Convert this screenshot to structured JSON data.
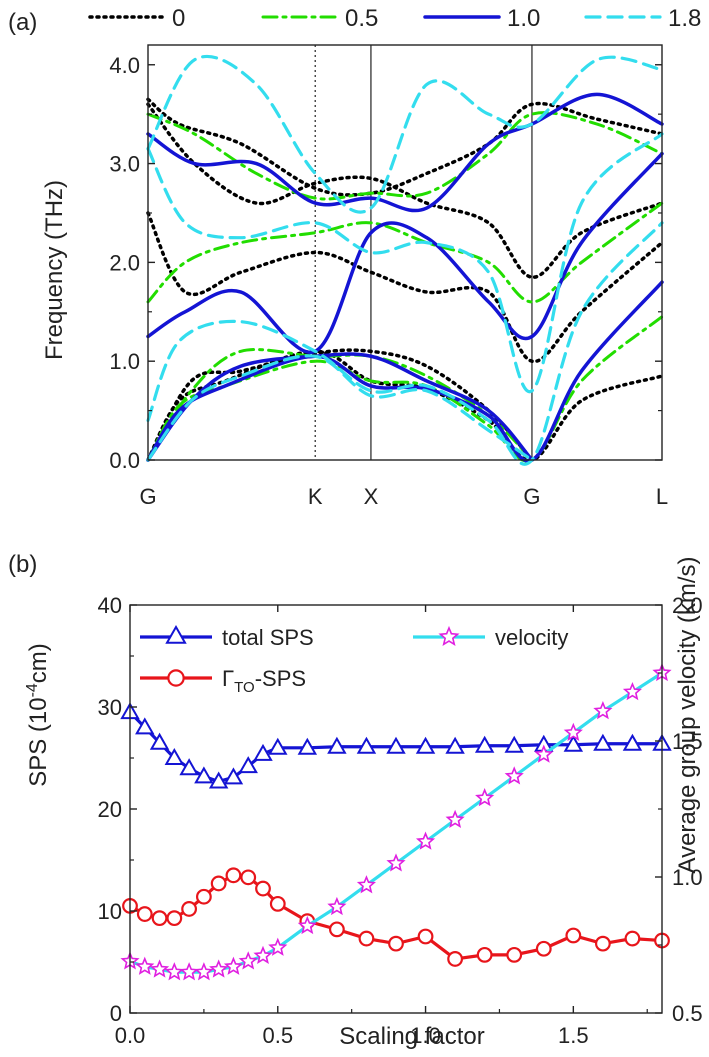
{
  "chart_data": [
    {
      "type": "line",
      "panel_label": "(a)",
      "ylabel": "Frequency (THz)",
      "ylim": [
        0,
        4.2
      ],
      "yticks": [
        "0.0",
        "1.0",
        "2.0",
        "3.0",
        "4.0"
      ],
      "xticks": [
        "G",
        "K",
        "X",
        "G",
        "L"
      ],
      "high_symmetry_positions": [
        0,
        0.54,
        0.72,
        1.24,
        1.66
      ],
      "legend": [
        {
          "name": "0",
          "color": "#000000",
          "dash": "dot"
        },
        {
          "name": "0.5",
          "color": "#22dd00",
          "dash": "dashdot"
        },
        {
          "name": "1.0",
          "color": "#1414d4",
          "dash": "solid"
        },
        {
          "name": "1.8",
          "color": "#33ddee",
          "dash": "dash"
        }
      ],
      "series": [
        {
          "name": "0",
          "bands": [
            [
              [
                0,
                0
              ],
              [
                0.14,
                0.8
              ],
              [
                0.3,
                0.9
              ],
              [
                0.54,
                1.08
              ],
              [
                0.72,
                1.1
              ],
              [
                0.9,
                0.95
              ],
              [
                1.1,
                0.5
              ],
              [
                1.24,
                0
              ]
            ],
            [
              [
                0,
                0
              ],
              [
                0.1,
                0.6
              ],
              [
                0.25,
                0.8
              ],
              [
                0.54,
                1.1
              ],
              [
                0.72,
                0.8
              ],
              [
                0.9,
                0.72
              ],
              [
                1.1,
                0.4
              ],
              [
                1.24,
                0
              ],
              [
                1.4,
                0.6
              ],
              [
                1.66,
                0.85
              ]
            ],
            [
              [
                0,
                2.5
              ],
              [
                0.12,
                1.7
              ],
              [
                0.3,
                1.9
              ],
              [
                0.54,
                2.1
              ],
              [
                0.72,
                1.9
              ],
              [
                0.9,
                1.7
              ],
              [
                1.1,
                1.7
              ],
              [
                1.24,
                1.0
              ],
              [
                1.4,
                1.5
              ],
              [
                1.66,
                2.2
              ]
            ],
            [
              [
                0,
                3.6
              ],
              [
                0.15,
                3.0
              ],
              [
                0.35,
                2.6
              ],
              [
                0.54,
                2.8
              ],
              [
                0.72,
                2.85
              ],
              [
                0.9,
                2.6
              ],
              [
                1.1,
                2.4
              ],
              [
                1.24,
                1.85
              ],
              [
                1.4,
                2.3
              ],
              [
                1.66,
                2.6
              ]
            ],
            [
              [
                0,
                3.65
              ],
              [
                0.1,
                3.4
              ],
              [
                0.3,
                3.2
              ],
              [
                0.54,
                2.75
              ],
              [
                0.72,
                2.7
              ],
              [
                0.9,
                2.9
              ],
              [
                1.1,
                3.2
              ],
              [
                1.24,
                3.6
              ],
              [
                1.45,
                3.45
              ],
              [
                1.66,
                3.3
              ]
            ]
          ]
        },
        {
          "name": "0.5",
          "bands": [
            [
              [
                0,
                0
              ],
              [
                0.14,
                0.7
              ],
              [
                0.3,
                1.1
              ],
              [
                0.54,
                1.05
              ],
              [
                0.72,
                1.05
              ],
              [
                0.9,
                0.85
              ],
              [
                1.1,
                0.45
              ],
              [
                1.24,
                0
              ]
            ],
            [
              [
                0,
                0
              ],
              [
                0.1,
                0.55
              ],
              [
                0.25,
                0.75
              ],
              [
                0.54,
                1.0
              ],
              [
                0.72,
                0.8
              ],
              [
                0.9,
                0.75
              ],
              [
                1.1,
                0.35
              ],
              [
                1.24,
                0
              ],
              [
                1.4,
                0.8
              ],
              [
                1.66,
                1.45
              ]
            ],
            [
              [
                0,
                1.6
              ],
              [
                0.12,
                2.0
              ],
              [
                0.3,
                2.2
              ],
              [
                0.54,
                2.3
              ],
              [
                0.72,
                2.4
              ],
              [
                0.9,
                2.2
              ],
              [
                1.1,
                2.0
              ],
              [
                1.24,
                1.6
              ],
              [
                1.4,
                2.0
              ],
              [
                1.66,
                2.6
              ]
            ],
            [
              [
                0,
                3.5
              ],
              [
                0.15,
                3.3
              ],
              [
                0.35,
                2.9
              ],
              [
                0.54,
                2.65
              ],
              [
                0.72,
                2.7
              ],
              [
                0.9,
                2.7
              ],
              [
                1.1,
                3.1
              ],
              [
                1.24,
                3.5
              ],
              [
                1.45,
                3.4
              ],
              [
                1.66,
                3.1
              ]
            ]
          ]
        },
        {
          "name": "1.0",
          "bands": [
            [
              [
                0,
                0
              ],
              [
                0.14,
                0.6
              ],
              [
                0.3,
                0.95
              ],
              [
                0.54,
                1.05
              ],
              [
                0.72,
                1.05
              ],
              [
                0.9,
                0.8
              ],
              [
                1.1,
                0.5
              ],
              [
                1.24,
                0
              ]
            ],
            [
              [
                0,
                0
              ],
              [
                0.1,
                0.5
              ],
              [
                0.25,
                0.75
              ],
              [
                0.54,
                1.05
              ],
              [
                0.72,
                0.75
              ],
              [
                0.9,
                0.72
              ],
              [
                1.1,
                0.45
              ],
              [
                1.24,
                0
              ],
              [
                1.4,
                0.9
              ],
              [
                1.66,
                1.8
              ]
            ],
            [
              [
                0,
                1.25
              ],
              [
                0.12,
                1.5
              ],
              [
                0.3,
                1.7
              ],
              [
                0.54,
                1.1
              ],
              [
                0.72,
                2.3
              ],
              [
                0.9,
                2.25
              ],
              [
                1.1,
                1.6
              ],
              [
                1.24,
                1.25
              ],
              [
                1.4,
                2.2
              ],
              [
                1.66,
                3.1
              ]
            ],
            [
              [
                0,
                3.3
              ],
              [
                0.15,
                3.0
              ],
              [
                0.35,
                3.0
              ],
              [
                0.54,
                2.6
              ],
              [
                0.72,
                2.65
              ],
              [
                0.9,
                2.55
              ],
              [
                1.1,
                3.2
              ],
              [
                1.24,
                3.4
              ],
              [
                1.45,
                3.7
              ],
              [
                1.66,
                3.4
              ]
            ]
          ]
        },
        {
          "name": "1.8",
          "bands": [
            [
              [
                0,
                0
              ],
              [
                0.14,
                0.6
              ],
              [
                0.3,
                0.85
              ],
              [
                0.54,
                1.05
              ],
              [
                0.72,
                0.65
              ],
              [
                0.9,
                0.7
              ],
              [
                1.1,
                0.3
              ],
              [
                1.24,
                0
              ]
            ],
            [
              [
                0,
                0.4
              ],
              [
                0.1,
                1.2
              ],
              [
                0.3,
                1.4
              ],
              [
                0.54,
                1.1
              ],
              [
                0.72,
                0.7
              ],
              [
                0.9,
                0.75
              ],
              [
                1.1,
                0.4
              ],
              [
                1.24,
                0
              ],
              [
                1.4,
                1.5
              ],
              [
                1.66,
                2.4
              ]
            ],
            [
              [
                0,
                3.15
              ],
              [
                0.12,
                2.4
              ],
              [
                0.3,
                2.25
              ],
              [
                0.54,
                2.4
              ],
              [
                0.72,
                2.1
              ],
              [
                0.9,
                2.2
              ],
              [
                1.1,
                1.9
              ],
              [
                1.24,
                0.7
              ],
              [
                1.4,
                2.6
              ],
              [
                1.66,
                3.3
              ]
            ],
            [
              [
                0,
                3.15
              ],
              [
                0.15,
                4.05
              ],
              [
                0.35,
                3.8
              ],
              [
                0.54,
                2.9
              ],
              [
                0.72,
                2.55
              ],
              [
                0.9,
                3.8
              ],
              [
                1.1,
                3.5
              ],
              [
                1.24,
                3.4
              ],
              [
                1.45,
                4.05
              ],
              [
                1.66,
                3.95
              ]
            ]
          ]
        }
      ]
    },
    {
      "type": "line",
      "panel_label": "(b)",
      "xlabel": "Scaling factor",
      "xlim": [
        0,
        1.8
      ],
      "xticks": [
        "0.0",
        "0.5",
        "1.0",
        "1.5"
      ],
      "ylabel": "SPS (10^-4 cm)",
      "ylabel_base": "SPS (10",
      "ylabel_sup": "-4",
      "ylabel_tail": "cm)",
      "ylim": [
        0,
        40
      ],
      "yticks": [
        "0",
        "10",
        "20",
        "30",
        "40"
      ],
      "y2label": "Average group velocity (km/s)",
      "y2lim": [
        0.5,
        2.0
      ],
      "y2ticks": [
        "0.5",
        "1.0",
        "1.5",
        "2.0"
      ],
      "series": [
        {
          "name": "total SPS",
          "axis": "left",
          "color": "#1414d4",
          "marker": "triangle",
          "x": [
            0,
            0.05,
            0.1,
            0.15,
            0.2,
            0.25,
            0.3,
            0.35,
            0.4,
            0.45,
            0.5,
            0.6,
            0.7,
            0.8,
            0.9,
            1.0,
            1.1,
            1.2,
            1.3,
            1.4,
            1.5,
            1.6,
            1.7,
            1.8
          ],
          "y": [
            29.5,
            28,
            26.5,
            25,
            24,
            23.2,
            22.7,
            23.1,
            24.2,
            25.4,
            26,
            26,
            26.1,
            26.1,
            26.1,
            26.1,
            26.1,
            26.2,
            26.2,
            26.3,
            26.3,
            26.4,
            26.4,
            26.4
          ]
        },
        {
          "name": "ΓTO-SPS",
          "name_main": "Γ",
          "name_sub": "TO",
          "name_tail": "-SPS",
          "axis": "left",
          "color": "#e8151b",
          "marker": "circle",
          "x": [
            0,
            0.05,
            0.1,
            0.15,
            0.2,
            0.25,
            0.3,
            0.35,
            0.4,
            0.45,
            0.5,
            0.6,
            0.7,
            0.8,
            0.9,
            1.0,
            1.1,
            1.2,
            1.3,
            1.4,
            1.5,
            1.6,
            1.7,
            1.8
          ],
          "y": [
            10.5,
            9.7,
            9.3,
            9.3,
            10.2,
            11.4,
            12.7,
            13.5,
            13.3,
            12.2,
            10.7,
            9,
            8.2,
            7.3,
            6.8,
            7.5,
            5.3,
            5.7,
            5.7,
            6.3,
            7.6,
            6.8,
            7.3,
            7.1
          ]
        },
        {
          "name": "velocity",
          "axis": "right",
          "color": "#33ddee",
          "marker": "star",
          "marker_color": "#e020e0",
          "x": [
            0,
            0.05,
            0.1,
            0.15,
            0.2,
            0.25,
            0.3,
            0.35,
            0.4,
            0.45,
            0.5,
            0.6,
            0.7,
            0.8,
            0.9,
            1.0,
            1.1,
            1.2,
            1.3,
            1.4,
            1.5,
            1.6,
            1.7,
            1.8
          ],
          "y": [
            0.69,
            0.67,
            0.66,
            0.65,
            0.65,
            0.65,
            0.66,
            0.67,
            0.69,
            0.71,
            0.74,
            0.82,
            0.89,
            0.97,
            1.05,
            1.13,
            1.21,
            1.29,
            1.37,
            1.45,
            1.53,
            1.61,
            1.68,
            1.75
          ]
        }
      ],
      "legend_placement": "top"
    }
  ]
}
